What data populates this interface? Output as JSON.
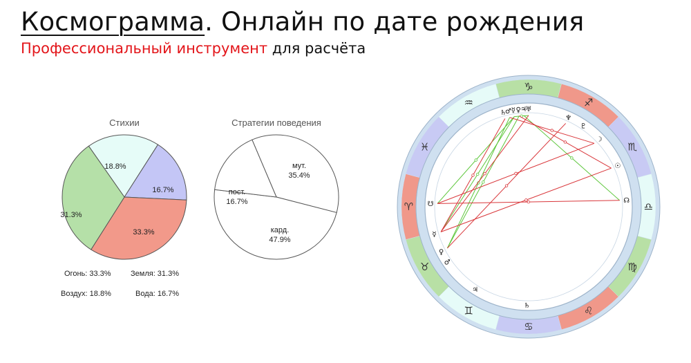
{
  "header": {
    "title_main": "Космограмма",
    "title_rest": ". Онлайн по дате рождения",
    "subtitle_red": "Профессиональный инструмент",
    "subtitle_rest": " для расчёта"
  },
  "chart_data": [
    {
      "type": "pie",
      "title": "Стихии",
      "slices": [
        {
          "label": "18.8%",
          "category": "Воздух",
          "value": 18.8,
          "color": "#e6fcf8"
        },
        {
          "label": "16.7%",
          "category": "Вода",
          "value": 16.7,
          "color": "#c4c6f6"
        },
        {
          "label": "33.3%",
          "category": "Огонь",
          "value": 33.3,
          "color": "#f2998a"
        },
        {
          "label": "31.3%",
          "category": "Земля",
          "value": 31.3,
          "color": "#b5e0a8"
        }
      ],
      "legend": [
        "Огонь: 33.3%",
        "Земля: 31.3%",
        "Воздух: 18.8%",
        "Вода: 16.7%"
      ]
    },
    {
      "type": "pie",
      "title": "Стратегии поведения",
      "slices": [
        {
          "label_line1": "мут.",
          "label_line2": "35.4%",
          "value": 35.4,
          "color": "#ffffff"
        },
        {
          "label_line1": "кард.",
          "label_line2": "47.9%",
          "value": 47.9,
          "color": "#ffffff"
        },
        {
          "label_line1": "пост.",
          "label_line2": "16.7%",
          "value": 16.7,
          "color": "#ffffff"
        }
      ]
    },
    {
      "type": "wheel",
      "signs": [
        {
          "icon": "capricorn-icon",
          "glyph": "♑",
          "color": "#b8e0a5"
        },
        {
          "icon": "sagittarius-icon",
          "glyph": "♐",
          "color": "#f0988a"
        },
        {
          "icon": "scorpio-icon",
          "glyph": "♏",
          "color": "#c8caf4"
        },
        {
          "icon": "libra-icon",
          "glyph": "♎",
          "color": "#e6fbf8"
        },
        {
          "icon": "virgo-icon",
          "glyph": "♍",
          "color": "#b8e0a5"
        },
        {
          "icon": "leo-icon",
          "glyph": "♌",
          "color": "#f0988a"
        },
        {
          "icon": "cancer-icon",
          "glyph": "♋",
          "color": "#c8caf4"
        },
        {
          "icon": "gemini-icon",
          "glyph": "♊",
          "color": "#e6fbf8"
        },
        {
          "icon": "taurus-icon",
          "glyph": "♉",
          "color": "#b8e0a5"
        },
        {
          "icon": "aries-icon",
          "glyph": "♈",
          "color": "#f0988a"
        },
        {
          "icon": "pisces-icon",
          "glyph": "♓",
          "color": "#c8caf4"
        },
        {
          "icon": "aquarius-icon",
          "glyph": "♒",
          "color": "#e6fbf8"
        }
      ],
      "planets": [
        {
          "icon": "mercury-icon",
          "glyph": "☿"
        },
        {
          "icon": "venus-icon",
          "glyph": "♀"
        },
        {
          "icon": "mars-icon",
          "glyph": "♂"
        },
        {
          "icon": "jupiter-icon",
          "glyph": "♃"
        },
        {
          "icon": "saturn-icon",
          "glyph": "♄"
        },
        {
          "icon": "uranus-icon",
          "glyph": "♅"
        },
        {
          "icon": "neptune-icon",
          "glyph": "♆"
        },
        {
          "icon": "pluto-icon",
          "glyph": "♇"
        },
        {
          "icon": "moon-icon",
          "glyph": "☽"
        },
        {
          "icon": "sun-icon",
          "glyph": "☉"
        },
        {
          "icon": "node-icon",
          "glyph": "☊"
        },
        {
          "icon": "south-node-icon",
          "glyph": "☋"
        }
      ],
      "aspect_colors": {
        "harmonious": "#5cc63a",
        "tense": "#d9363a"
      }
    }
  ]
}
